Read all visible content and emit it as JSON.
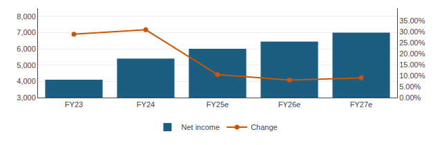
{
  "chart_data": {
    "type": "bar",
    "categories": [
      "FY23",
      "FY24",
      "FY25e",
      "FY26e",
      "FY27e"
    ],
    "series": [
      {
        "name": "Net income",
        "type": "bar",
        "color": "#1b5e82",
        "values": [
          4100,
          5400,
          6000,
          6450,
          7000
        ]
      },
      {
        "name": "Change",
        "type": "line",
        "color": "#cc5500",
        "marker": "circle",
        "axis": "y2",
        "values": [
          0.29,
          0.31,
          0.105,
          0.08,
          0.09
        ]
      }
    ],
    "ylim": [
      3000,
      8500
    ],
    "yticks": [
      {
        "value": 3000,
        "label": "3,000"
      },
      {
        "value": 4000,
        "label": "4,000"
      },
      {
        "value": 5000,
        "label": "5,000"
      },
      {
        "value": 6000,
        "label": "6,000"
      },
      {
        "value": 7000,
        "label": "7,000"
      },
      {
        "value": 8000,
        "label": "8,000"
      }
    ],
    "y2lim": [
      0.0,
      0.4083
    ],
    "y2ticks": [
      {
        "value": 0.0,
        "label": "0.00%"
      },
      {
        "value": 0.05,
        "label": "5.00%"
      },
      {
        "value": 0.1,
        "label": "10.00%"
      },
      {
        "value": 0.15,
        "label": "15.00%"
      },
      {
        "value": 0.2,
        "label": "20.00%"
      },
      {
        "value": 0.25,
        "label": "25.00%"
      },
      {
        "value": 0.3,
        "label": "30.00%"
      },
      {
        "value": 0.35,
        "label": "35.00%"
      }
    ],
    "grid": true,
    "legend": "bottom"
  }
}
